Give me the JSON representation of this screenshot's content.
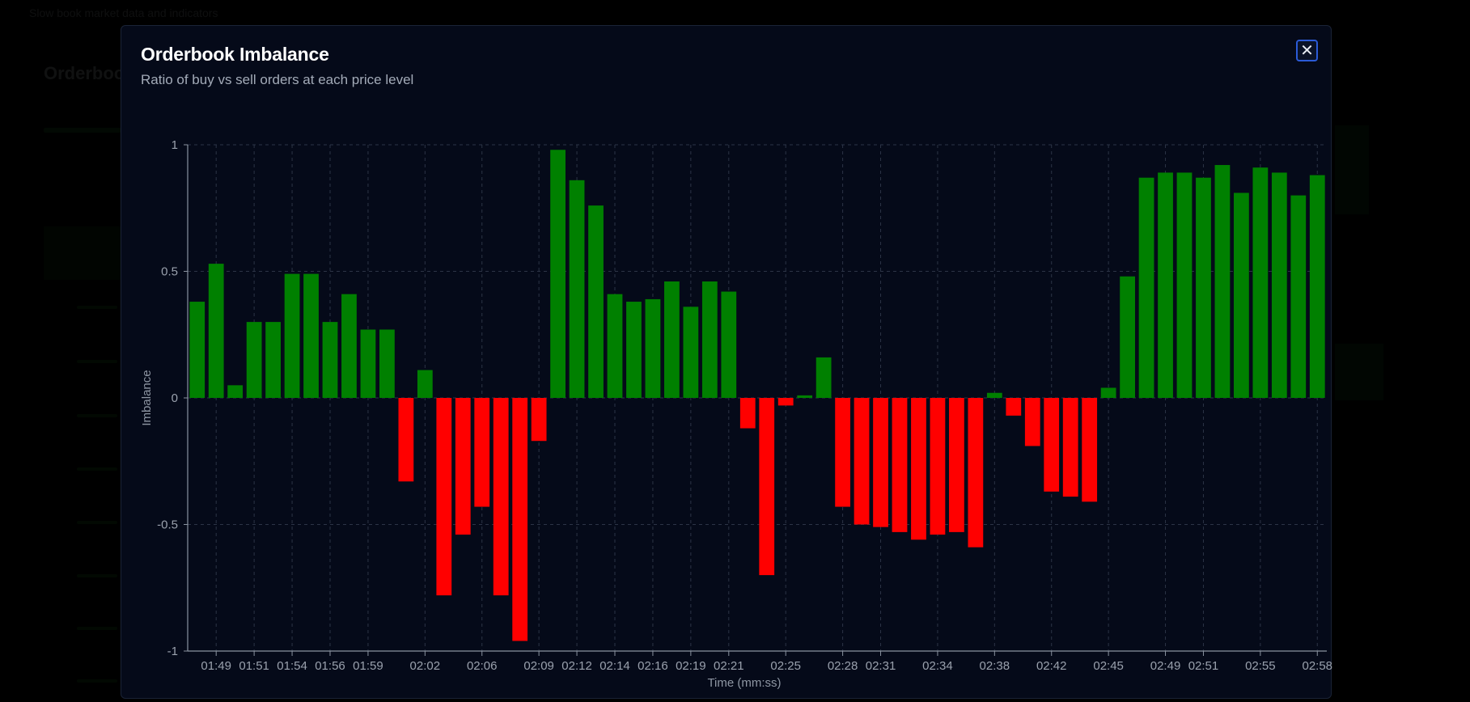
{
  "page": {
    "background_hint": "Slow book market data and indicators",
    "background_title": "Orderbook"
  },
  "modal": {
    "title": "Orderbook Imbalance",
    "subtitle": "Ratio of buy vs sell orders at each price level",
    "close_icon": "close-icon",
    "close_glyph": "✕"
  },
  "colors": {
    "positive": "#008000",
    "negative": "#ff0000",
    "axis": "#8a93a0",
    "grid": "#2c3446",
    "accent": "#2b5bd7"
  },
  "chart_data": {
    "type": "bar",
    "title": "",
    "xlabel": "Time (mm:ss)",
    "ylabel": "Imbalance",
    "ylim": [
      -1,
      1
    ],
    "yticks": [
      1,
      0.5,
      0,
      -0.5,
      -1
    ],
    "ytick_labels": [
      "1",
      "0.5",
      "0",
      "-0.5",
      "-1"
    ],
    "grid": true,
    "xtick_labels": [
      {
        "bar": 1,
        "label": "01:49"
      },
      {
        "bar": 3,
        "label": "01:51"
      },
      {
        "bar": 5,
        "label": "01:54"
      },
      {
        "bar": 7,
        "label": "01:56"
      },
      {
        "bar": 9,
        "label": "01:59"
      },
      {
        "bar": 12,
        "label": "02:02"
      },
      {
        "bar": 15,
        "label": "02:06"
      },
      {
        "bar": 18,
        "label": "02:09"
      },
      {
        "bar": 20,
        "label": "02:12"
      },
      {
        "bar": 22,
        "label": "02:14"
      },
      {
        "bar": 24,
        "label": "02:16"
      },
      {
        "bar": 26,
        "label": "02:19"
      },
      {
        "bar": 28,
        "label": "02:21"
      },
      {
        "bar": 31,
        "label": "02:25"
      },
      {
        "bar": 34,
        "label": "02:28"
      },
      {
        "bar": 36,
        "label": "02:31"
      },
      {
        "bar": 39,
        "label": "02:34"
      },
      {
        "bar": 42,
        "label": "02:38"
      },
      {
        "bar": 45,
        "label": "02:42"
      },
      {
        "bar": 48,
        "label": "02:45"
      },
      {
        "bar": 51,
        "label": "02:49"
      },
      {
        "bar": 53,
        "label": "02:51"
      },
      {
        "bar": 56,
        "label": "02:55"
      },
      {
        "bar": 59,
        "label": "02:58"
      }
    ],
    "values": [
      0.38,
      0.53,
      0.05,
      0.3,
      0.3,
      0.49,
      0.49,
      0.3,
      0.41,
      0.27,
      0.27,
      -0.33,
      0.11,
      -0.78,
      -0.54,
      -0.43,
      -0.78,
      -0.96,
      -0.17,
      0.98,
      0.86,
      0.76,
      0.41,
      0.38,
      0.39,
      0.46,
      0.36,
      0.46,
      0.42,
      -0.12,
      -0.7,
      -0.03,
      0.01,
      0.16,
      -0.43,
      -0.5,
      -0.51,
      -0.53,
      -0.56,
      -0.54,
      -0.53,
      -0.59,
      0.02,
      -0.07,
      -0.19,
      -0.37,
      -0.39,
      -0.41,
      0.04,
      0.48,
      0.87,
      0.89,
      0.89,
      0.87,
      0.92,
      0.81,
      0.91,
      0.89,
      0.8,
      0.88
    ]
  }
}
